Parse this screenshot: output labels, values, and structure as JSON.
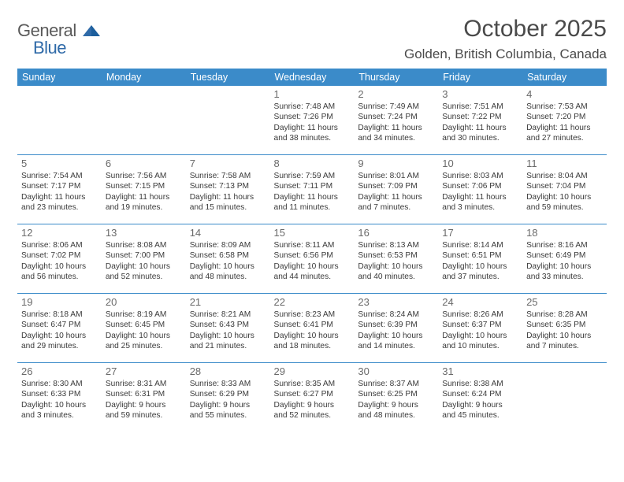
{
  "logo": {
    "general": "General",
    "blue": "Blue"
  },
  "title": "October 2025",
  "location": "Golden, British Columbia, Canada",
  "colors": {
    "header_bg": "#3b8bc9",
    "header_fg": "#ffffff",
    "rule": "#3b8bc9",
    "text": "#3a3a3a",
    "muted": "#6a6a6a",
    "logo_gray": "#5a5a5a",
    "logo_blue": "#2f6aa8"
  },
  "layout": {
    "columns": 7,
    "rows": 5,
    "first_weekday_index": 3
  },
  "day_headers": [
    "Sunday",
    "Monday",
    "Tuesday",
    "Wednesday",
    "Thursday",
    "Friday",
    "Saturday"
  ],
  "days": [
    {
      "n": 1,
      "sr": "7:48 AM",
      "ss": "7:26 PM",
      "dh": 11,
      "dm": 38
    },
    {
      "n": 2,
      "sr": "7:49 AM",
      "ss": "7:24 PM",
      "dh": 11,
      "dm": 34
    },
    {
      "n": 3,
      "sr": "7:51 AM",
      "ss": "7:22 PM",
      "dh": 11,
      "dm": 30
    },
    {
      "n": 4,
      "sr": "7:53 AM",
      "ss": "7:20 PM",
      "dh": 11,
      "dm": 27
    },
    {
      "n": 5,
      "sr": "7:54 AM",
      "ss": "7:17 PM",
      "dh": 11,
      "dm": 23
    },
    {
      "n": 6,
      "sr": "7:56 AM",
      "ss": "7:15 PM",
      "dh": 11,
      "dm": 19
    },
    {
      "n": 7,
      "sr": "7:58 AM",
      "ss": "7:13 PM",
      "dh": 11,
      "dm": 15
    },
    {
      "n": 8,
      "sr": "7:59 AM",
      "ss": "7:11 PM",
      "dh": 11,
      "dm": 11
    },
    {
      "n": 9,
      "sr": "8:01 AM",
      "ss": "7:09 PM",
      "dh": 11,
      "dm": 7
    },
    {
      "n": 10,
      "sr": "8:03 AM",
      "ss": "7:06 PM",
      "dh": 11,
      "dm": 3
    },
    {
      "n": 11,
      "sr": "8:04 AM",
      "ss": "7:04 PM",
      "dh": 10,
      "dm": 59
    },
    {
      "n": 12,
      "sr": "8:06 AM",
      "ss": "7:02 PM",
      "dh": 10,
      "dm": 56
    },
    {
      "n": 13,
      "sr": "8:08 AM",
      "ss": "7:00 PM",
      "dh": 10,
      "dm": 52
    },
    {
      "n": 14,
      "sr": "8:09 AM",
      "ss": "6:58 PM",
      "dh": 10,
      "dm": 48
    },
    {
      "n": 15,
      "sr": "8:11 AM",
      "ss": "6:56 PM",
      "dh": 10,
      "dm": 44
    },
    {
      "n": 16,
      "sr": "8:13 AM",
      "ss": "6:53 PM",
      "dh": 10,
      "dm": 40
    },
    {
      "n": 17,
      "sr": "8:14 AM",
      "ss": "6:51 PM",
      "dh": 10,
      "dm": 37
    },
    {
      "n": 18,
      "sr": "8:16 AM",
      "ss": "6:49 PM",
      "dh": 10,
      "dm": 33
    },
    {
      "n": 19,
      "sr": "8:18 AM",
      "ss": "6:47 PM",
      "dh": 10,
      "dm": 29
    },
    {
      "n": 20,
      "sr": "8:19 AM",
      "ss": "6:45 PM",
      "dh": 10,
      "dm": 25
    },
    {
      "n": 21,
      "sr": "8:21 AM",
      "ss": "6:43 PM",
      "dh": 10,
      "dm": 21
    },
    {
      "n": 22,
      "sr": "8:23 AM",
      "ss": "6:41 PM",
      "dh": 10,
      "dm": 18
    },
    {
      "n": 23,
      "sr": "8:24 AM",
      "ss": "6:39 PM",
      "dh": 10,
      "dm": 14
    },
    {
      "n": 24,
      "sr": "8:26 AM",
      "ss": "6:37 PM",
      "dh": 10,
      "dm": 10
    },
    {
      "n": 25,
      "sr": "8:28 AM",
      "ss": "6:35 PM",
      "dh": 10,
      "dm": 7
    },
    {
      "n": 26,
      "sr": "8:30 AM",
      "ss": "6:33 PM",
      "dh": 10,
      "dm": 3
    },
    {
      "n": 27,
      "sr": "8:31 AM",
      "ss": "6:31 PM",
      "dh": 9,
      "dm": 59
    },
    {
      "n": 28,
      "sr": "8:33 AM",
      "ss": "6:29 PM",
      "dh": 9,
      "dm": 55
    },
    {
      "n": 29,
      "sr": "8:35 AM",
      "ss": "6:27 PM",
      "dh": 9,
      "dm": 52
    },
    {
      "n": 30,
      "sr": "8:37 AM",
      "ss": "6:25 PM",
      "dh": 9,
      "dm": 48
    },
    {
      "n": 31,
      "sr": "8:38 AM",
      "ss": "6:24 PM",
      "dh": 9,
      "dm": 45
    }
  ],
  "labels": {
    "sunrise": "Sunrise:",
    "sunset": "Sunset:",
    "daylight": "Daylight:",
    "hours": "hours",
    "and": "and",
    "minutes": "minutes."
  }
}
